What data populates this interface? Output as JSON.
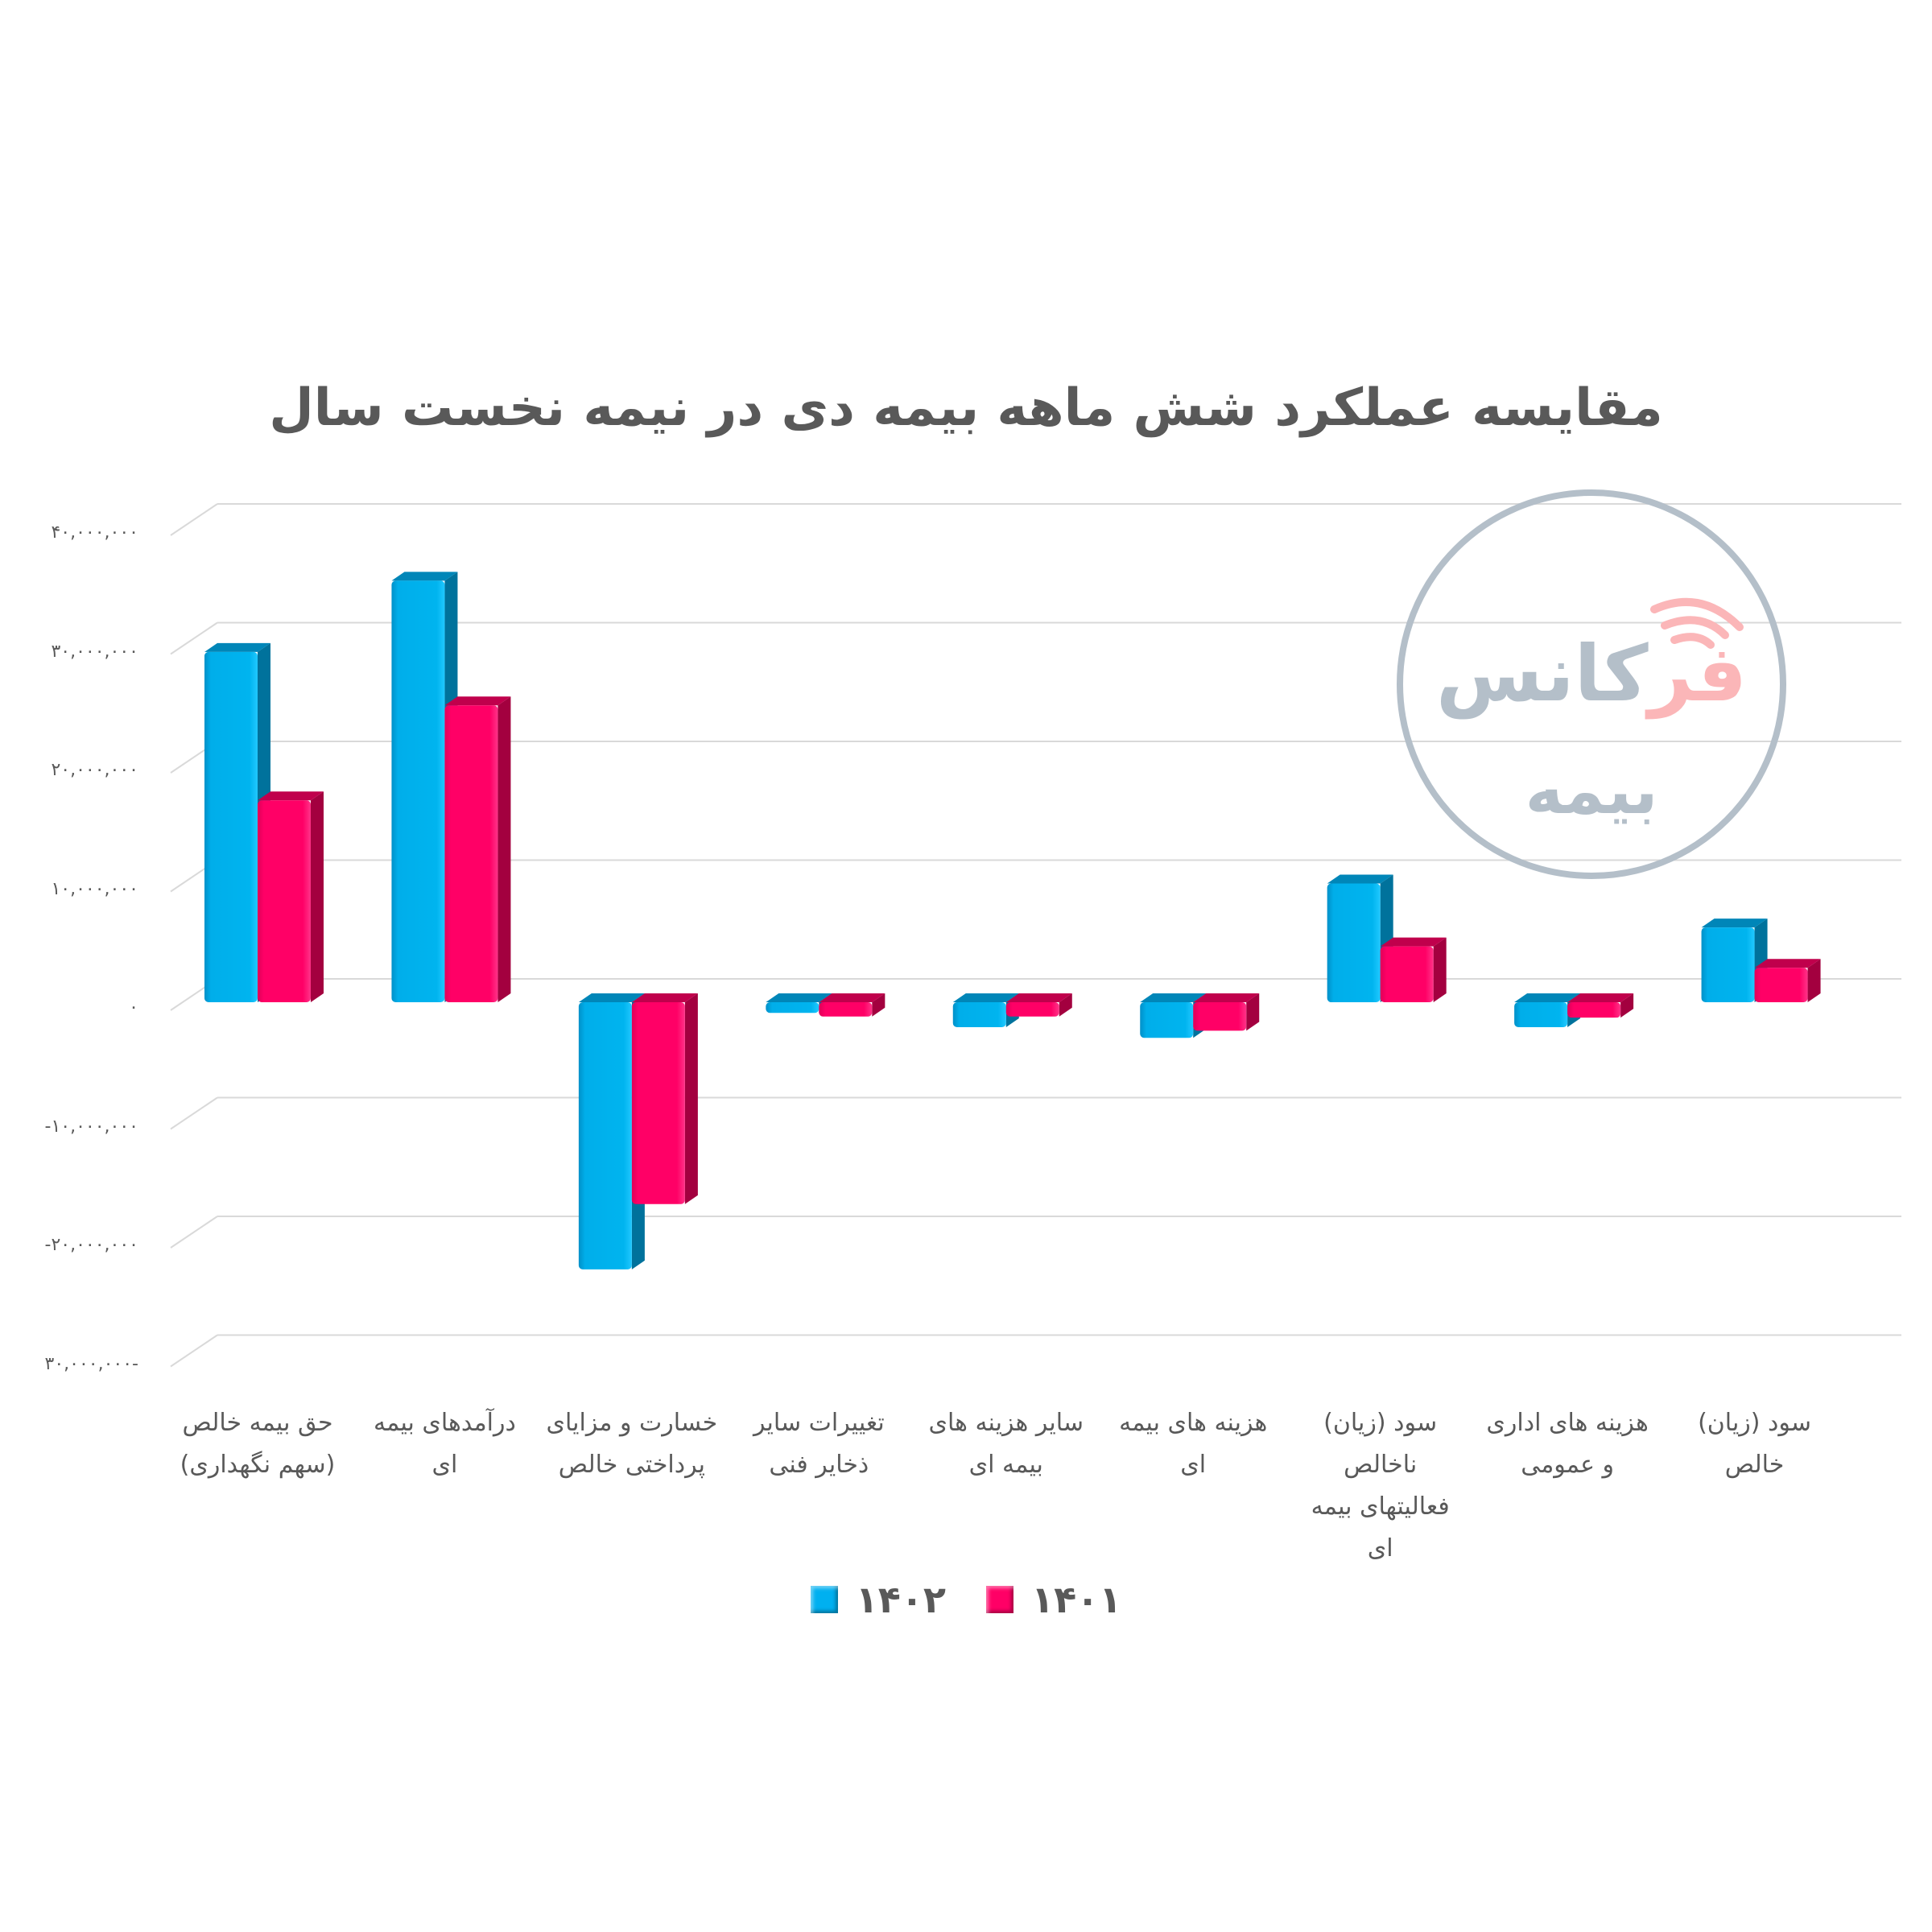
{
  "title": "مقایسه عملکرد شش ماهه بیمه دی در نیمه نخست سال",
  "watermark": {
    "accent_text": "فر",
    "main_text": "کانس",
    "sub_text": "بیمه",
    "circle_color": "#b4bfc9",
    "accent_color": "#fbb6b8",
    "icon": "wifi-signal-icon"
  },
  "legend": [
    {
      "label": "۱۴۰۲",
      "color": "#00b0f0"
    },
    {
      "label": "۱۴۰۱",
      "color": "#ff0066"
    }
  ],
  "y_axis": {
    "ticks": [
      "۴۰,۰۰۰,۰۰۰",
      "۳۰,۰۰۰,۰۰۰",
      "۲۰,۰۰۰,۰۰۰",
      "۱۰,۰۰۰,۰۰۰",
      "۰",
      "-۱۰,۰۰۰,۰۰۰",
      "-۲۰,۰۰۰,۰۰۰",
      "۳۰,۰۰۰,۰۰۰-"
    ]
  },
  "chart_data": {
    "type": "bar",
    "title": "مقایسه عملکرد شش ماهه بیمه دی در نیمه نخست سال",
    "xlabel": "",
    "ylabel": "",
    "ylim": [
      -30000000,
      40000000
    ],
    "y_ticks": [
      40000000,
      30000000,
      20000000,
      10000000,
      0,
      -10000000,
      -20000000,
      -30000000
    ],
    "grid": true,
    "legend_position": "bottom",
    "style": "3d-clustered-column",
    "categories": [
      "حق بیمه خالص (سهم نگهداری)",
      "درآمدهای بیمه ای",
      "خسارت و مزایای پرداختی خالص",
      "تغییرات سایر ذخایر فنی",
      "سایر هزینه های بیمه ای",
      "هزینه های بیمه ای",
      "سود (زیان) ناخالص فعالیتهای بیمه ای",
      "هزینه های اداری و عمومی",
      "سود (زیان) خالص"
    ],
    "category_lines": [
      [
        "حق بیمه خالص",
        "(سهم نگهداری)"
      ],
      [
        "درآمدهای بیمه",
        "ای"
      ],
      [
        "خسارت و مزایای",
        "پرداختی خالص"
      ],
      [
        "تغییرات سایر",
        "ذخایر فنی"
      ],
      [
        "سایر هزینه های",
        "بیمه ای"
      ],
      [
        "هزینه های بیمه",
        "ای"
      ],
      [
        "سود (زیان)",
        "ناخالص",
        "فعالیتهای بیمه",
        "ای"
      ],
      [
        "هزینه های اداری",
        "و عمومی"
      ],
      [
        "سود (زیان)",
        "خالص"
      ]
    ],
    "series": [
      {
        "name": "۱۴۰۲",
        "color": "#00b0f0",
        "values": [
          29500000,
          35500000,
          -22500000,
          -900000,
          -2100000,
          -3000000,
          10000000,
          -2100000,
          6300000
        ]
      },
      {
        "name": "۱۴۰۱",
        "color": "#ff0066",
        "values": [
          17000000,
          25000000,
          -17000000,
          -1200000,
          -1200000,
          -2400000,
          4700000,
          -1300000,
          2900000
        ]
      }
    ]
  }
}
